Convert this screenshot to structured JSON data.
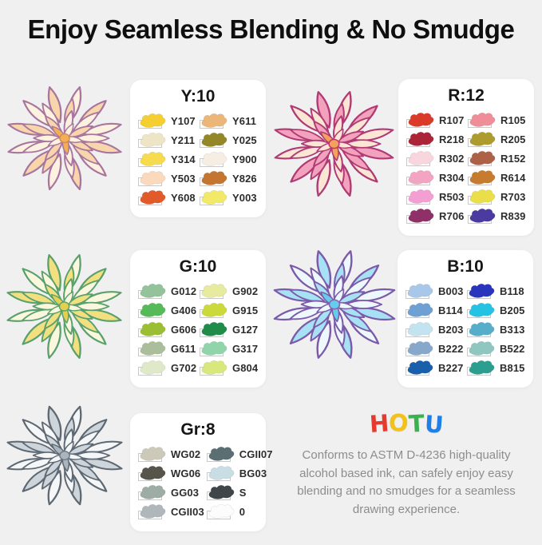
{
  "page": {
    "title": "Enjoy Seamless Blending & No Smudge",
    "background": "#f0f0f0",
    "panel_background": "#ffffff"
  },
  "panels": [
    {
      "id": "Y",
      "title": "Y:10",
      "swatches": [
        {
          "code": "Y107",
          "color": "#F5CE32"
        },
        {
          "code": "Y211",
          "color": "#EDE5C6"
        },
        {
          "code": "Y314",
          "color": "#F6DB4E"
        },
        {
          "code": "Y503",
          "color": "#FAD9BD"
        },
        {
          "code": "Y608",
          "color": "#E2592A"
        },
        {
          "code": "Y611",
          "color": "#EBB678"
        },
        {
          "code": "Y025",
          "color": "#948728"
        },
        {
          "code": "Y900",
          "color": "#F6EEE3"
        },
        {
          "code": "Y826",
          "color": "#C4752F"
        },
        {
          "code": "Y003",
          "color": "#F2E969"
        }
      ]
    },
    {
      "id": "R",
      "title": "R:12",
      "swatches": [
        {
          "code": "R107",
          "color": "#DB3A28"
        },
        {
          "code": "R218",
          "color": "#AC2438"
        },
        {
          "code": "R302",
          "color": "#F7D6DD"
        },
        {
          "code": "R304",
          "color": "#F2A4C0"
        },
        {
          "code": "R503",
          "color": "#F49FD4"
        },
        {
          "code": "R706",
          "color": "#8F3069"
        },
        {
          "code": "R105",
          "color": "#EF8D98"
        },
        {
          "code": "R205",
          "color": "#AE9B2E"
        },
        {
          "code": "R152",
          "color": "#AD6247"
        },
        {
          "code": "R614",
          "color": "#C67B2E"
        },
        {
          "code": "R703",
          "color": "#EADF4A"
        },
        {
          "code": "R839",
          "color": "#4A3AA2"
        }
      ]
    },
    {
      "id": "G",
      "title": "G:10",
      "swatches": [
        {
          "code": "G012",
          "color": "#93C29B"
        },
        {
          "code": "G406",
          "color": "#57BA58"
        },
        {
          "code": "G606",
          "color": "#9CBE33"
        },
        {
          "code": "G611",
          "color": "#ABBE9B"
        },
        {
          "code": "G702",
          "color": "#DFE9C9"
        },
        {
          "code": "G902",
          "color": "#E6EB9F"
        },
        {
          "code": "G915",
          "color": "#CBD93B"
        },
        {
          "code": "G127",
          "color": "#1F8C49"
        },
        {
          "code": "G317",
          "color": "#90D5AA"
        },
        {
          "code": "G804",
          "color": "#D8E87D"
        }
      ]
    },
    {
      "id": "B",
      "title": "B:10",
      "swatches": [
        {
          "code": "B003",
          "color": "#A9C7E8"
        },
        {
          "code": "B114",
          "color": "#6FA0D4"
        },
        {
          "code": "B203",
          "color": "#C3E3F0"
        },
        {
          "code": "B222",
          "color": "#86A9CB"
        },
        {
          "code": "B227",
          "color": "#1A5FAC"
        },
        {
          "code": "B118",
          "color": "#2A35BD"
        },
        {
          "code": "B205",
          "color": "#25C2E4"
        },
        {
          "code": "B313",
          "color": "#57AECB"
        },
        {
          "code": "B522",
          "color": "#8FC6C0"
        },
        {
          "code": "B815",
          "color": "#2C9E8F"
        }
      ]
    },
    {
      "id": "Gr",
      "title": "Gr:8",
      "swatches": [
        {
          "code": "WG02",
          "color": "#CDC9B9"
        },
        {
          "code": "WG06",
          "color": "#56544B"
        },
        {
          "code": "GG03",
          "color": "#9DACA5"
        },
        {
          "code": "CGII03",
          "color": "#AFB7BB"
        },
        {
          "code": "CGII07",
          "color": "#5B6F73"
        },
        {
          "code": "BG03",
          "color": "#C9DDE5"
        },
        {
          "code": "S",
          "color": "#3F4549"
        },
        {
          "code": "0",
          "color": "#FCFCFC"
        }
      ]
    }
  ],
  "brand": {
    "name": "HOTU",
    "letters": [
      {
        "ch": "H",
        "color": "#E63A2E"
      },
      {
        "ch": "O",
        "color": "#F3C117"
      },
      {
        "ch": "T",
        "color": "#3BB24E"
      },
      {
        "ch": "U",
        "color": "#1F7FE8"
      }
    ],
    "description": "Conforms to ASTM D-4236 high-quality alcohol based ink, can safely enjoy easy blending and no smudges for a seamless drawing experience."
  },
  "flowers": [
    {
      "id": "peach",
      "label": "peach-succulent-illustration",
      "palette": {
        "edge": "#A8759E",
        "deep": "#D98A52",
        "mid": "#F8D6AC",
        "light": "#FDF2E0",
        "accent": "#F3AE58"
      }
    },
    {
      "id": "pink",
      "label": "pink-succulent-illustration",
      "palette": {
        "edge": "#B03A74",
        "deep": "#C2356E",
        "mid": "#F2A2BC",
        "light": "#FBE6D6",
        "accent": "#F2A25A"
      }
    },
    {
      "id": "green",
      "label": "green-yellow-succulent-illustration",
      "palette": {
        "edge": "#58A06C",
        "deep": "#57A468",
        "mid": "#F2DF80",
        "light": "#FBF7DE",
        "accent": "#E4CF52"
      }
    },
    {
      "id": "blue",
      "label": "blue-succulent-illustration",
      "palette": {
        "edge": "#7C5AAA",
        "deep": "#8A62B4",
        "mid": "#A6E2F4",
        "light": "#EDF8FC",
        "accent": "#66CCEA"
      }
    },
    {
      "id": "gray",
      "label": "gray-succulent-illustration",
      "palette": {
        "edge": "#5E6872",
        "deep": "#6F7C88",
        "mid": "#CDD5DB",
        "light": "#F4F6F8",
        "accent": "#A9B4BE"
      }
    }
  ]
}
